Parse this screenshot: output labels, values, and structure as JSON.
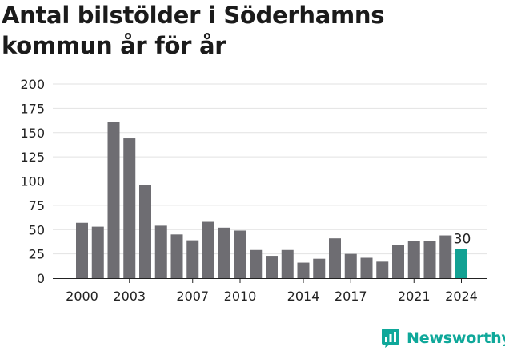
{
  "title": "Antal bilstölder i Söderhamns kommun år för år",
  "brand": {
    "name": "Newsworthy",
    "icon": "newsworthy-logo-icon"
  },
  "colors": {
    "bar": "#6e6d72",
    "highlight": "#12a193",
    "grid": "#e2e2e2",
    "axis": "#222222",
    "brand": "#0fa89a"
  },
  "chart_data": {
    "type": "bar",
    "title": "Antal bilstölder i Söderhamns kommun år för år",
    "xlabel": "",
    "ylabel": "",
    "x": [
      2000,
      2001,
      2002,
      2003,
      2004,
      2005,
      2006,
      2007,
      2008,
      2009,
      2010,
      2011,
      2012,
      2013,
      2014,
      2015,
      2016,
      2017,
      2018,
      2019,
      2020,
      2021,
      2022,
      2023,
      2024
    ],
    "values": [
      57,
      53,
      161,
      144,
      96,
      54,
      45,
      39,
      58,
      52,
      49,
      29,
      23,
      29,
      16,
      20,
      41,
      25,
      21,
      17,
      34,
      38,
      38,
      44,
      30
    ],
    "ylim": [
      0,
      200
    ],
    "yticks": [
      0,
      25,
      50,
      75,
      100,
      125,
      150,
      175,
      200
    ],
    "xticks": [
      "2000",
      "2003",
      "2007",
      "2010",
      "2014",
      "2017",
      "2021",
      "2024"
    ],
    "highlight": {
      "x": 2024,
      "label": "30"
    },
    "grid": true,
    "legend": "none"
  }
}
